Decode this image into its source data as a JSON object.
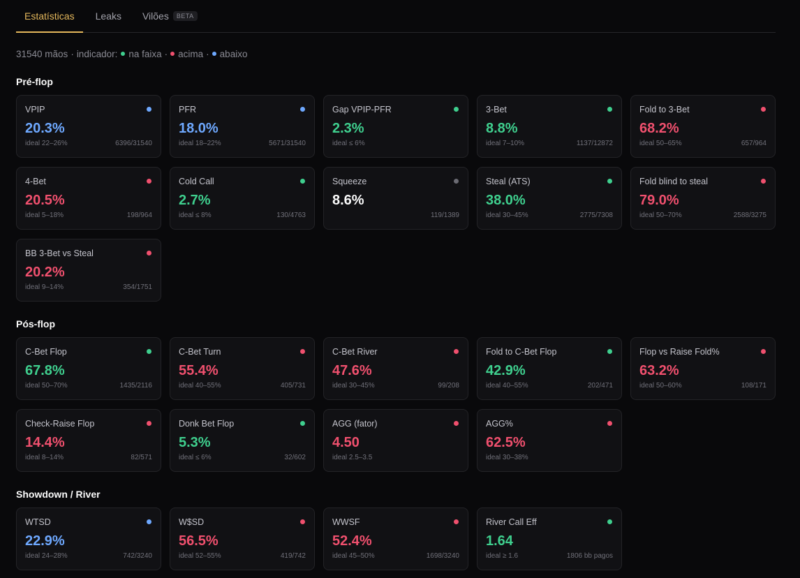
{
  "tabs": [
    {
      "label": "Estatísticas",
      "active": true
    },
    {
      "label": "Leaks",
      "active": false
    },
    {
      "label": "Vilões",
      "active": false,
      "badge": "BETA"
    }
  ],
  "summary": {
    "hands": "31540 mãos",
    "indicator_label": "indicador:",
    "in_range": "na faixa",
    "above": "acima",
    "below": "abaixo"
  },
  "colors": {
    "green": "#3fcf8e",
    "red": "#f0506e",
    "blue": "#6ea8fe",
    "gray": "#6b6b73",
    "accent": "#e5b85c"
  },
  "sections": [
    {
      "title": "Pré-flop",
      "cards": [
        {
          "name": "VPIP",
          "value": "20.3%",
          "status": "blue",
          "ideal": "ideal 22–26%",
          "sample": "6396/31540"
        },
        {
          "name": "PFR",
          "value": "18.0%",
          "status": "blue",
          "ideal": "ideal 18–22%",
          "sample": "5671/31540"
        },
        {
          "name": "Gap VPIP-PFR",
          "value": "2.3%",
          "status": "green",
          "ideal": "ideal ≤ 6%",
          "sample": ""
        },
        {
          "name": "3-Bet",
          "value": "8.8%",
          "status": "green",
          "ideal": "ideal 7–10%",
          "sample": "1137/12872"
        },
        {
          "name": "Fold to 3-Bet",
          "value": "68.2%",
          "status": "red",
          "ideal": "ideal 50–65%",
          "sample": "657/964"
        },
        {
          "name": "4-Bet",
          "value": "20.5%",
          "status": "red",
          "ideal": "ideal 5–18%",
          "sample": "198/964"
        },
        {
          "name": "Cold Call",
          "value": "2.7%",
          "status": "green",
          "ideal": "ideal ≤ 8%",
          "sample": "130/4763"
        },
        {
          "name": "Squeeze",
          "value": "8.6%",
          "status": "gray",
          "ideal": "",
          "sample": "119/1389"
        },
        {
          "name": "Steal (ATS)",
          "value": "38.0%",
          "status": "green",
          "ideal": "ideal 30–45%",
          "sample": "2775/7308"
        },
        {
          "name": "Fold blind to steal",
          "value": "79.0%",
          "status": "red",
          "ideal": "ideal 50–70%",
          "sample": "2588/3275"
        },
        {
          "name": "BB 3-Bet vs Steal",
          "value": "20.2%",
          "status": "red",
          "ideal": "ideal 9–14%",
          "sample": "354/1751"
        }
      ]
    },
    {
      "title": "Pós-flop",
      "cards": [
        {
          "name": "C-Bet Flop",
          "value": "67.8%",
          "status": "green",
          "ideal": "ideal 50–70%",
          "sample": "1435/2116"
        },
        {
          "name": "C-Bet Turn",
          "value": "55.4%",
          "status": "red",
          "ideal": "ideal 40–55%",
          "sample": "405/731"
        },
        {
          "name": "C-Bet River",
          "value": "47.6%",
          "status": "red",
          "ideal": "ideal 30–45%",
          "sample": "99/208"
        },
        {
          "name": "Fold to C-Bet Flop",
          "value": "42.9%",
          "status": "green",
          "ideal": "ideal 40–55%",
          "sample": "202/471"
        },
        {
          "name": "Flop vs Raise Fold%",
          "value": "63.2%",
          "status": "red",
          "ideal": "ideal 50–60%",
          "sample": "108/171"
        },
        {
          "name": "Check-Raise Flop",
          "value": "14.4%",
          "status": "red",
          "ideal": "ideal 8–14%",
          "sample": "82/571"
        },
        {
          "name": "Donk Bet Flop",
          "value": "5.3%",
          "status": "green",
          "ideal": "ideal ≤ 6%",
          "sample": "32/602"
        },
        {
          "name": "AGG (fator)",
          "value": "4.50",
          "status": "red",
          "ideal": "ideal 2.5–3.5",
          "sample": ""
        },
        {
          "name": "AGG%",
          "value": "62.5%",
          "status": "red",
          "ideal": "ideal 30–38%",
          "sample": ""
        }
      ]
    },
    {
      "title": "Showdown / River",
      "cards": [
        {
          "name": "WTSD",
          "value": "22.9%",
          "status": "blue",
          "ideal": "ideal 24–28%",
          "sample": "742/3240"
        },
        {
          "name": "W$SD",
          "value": "56.5%",
          "status": "red",
          "ideal": "ideal 52–55%",
          "sample": "419/742"
        },
        {
          "name": "WWSF",
          "value": "52.4%",
          "status": "red",
          "ideal": "ideal 45–50%",
          "sample": "1698/3240"
        },
        {
          "name": "River Call Eff",
          "value": "1.64",
          "status": "green",
          "ideal": "ideal ≥ 1.6",
          "sample": "1806 bb pagos"
        }
      ]
    }
  ]
}
